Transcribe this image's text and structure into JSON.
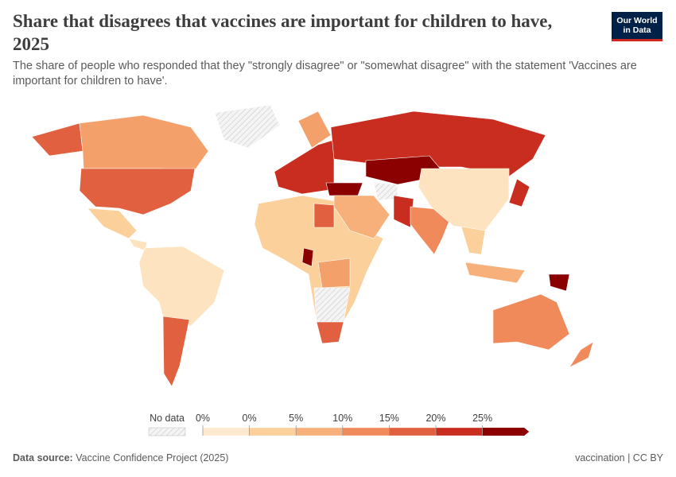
{
  "header": {
    "title": "Share that disagrees that vaccines are important for children to have, 2025",
    "subtitle": "The share of people who responded that they \"strongly disagree\" or \"somewhat disagree\" with the statement 'Vaccines are important for children to have'.",
    "logo": [
      "Our World",
      "in Data"
    ]
  },
  "legend": {
    "no_data_label": "No data",
    "bins": [
      {
        "label": "0%",
        "color": "#fde9cf"
      },
      {
        "label": "0%",
        "color": "#fbd09b"
      },
      {
        "label": "5%",
        "color": "#f8b07b"
      },
      {
        "label": "10%",
        "color": "#f08a5b"
      },
      {
        "label": "15%",
        "color": "#e0603f"
      },
      {
        "label": "20%",
        "color": "#c82d1f"
      },
      {
        "label": "25%",
        "color": "#8b0000"
      }
    ]
  },
  "footer": {
    "source_label": "Data source:",
    "source": "Vaccine Confidence Project (2025)",
    "license": "vaccination | CC BY"
  }
}
